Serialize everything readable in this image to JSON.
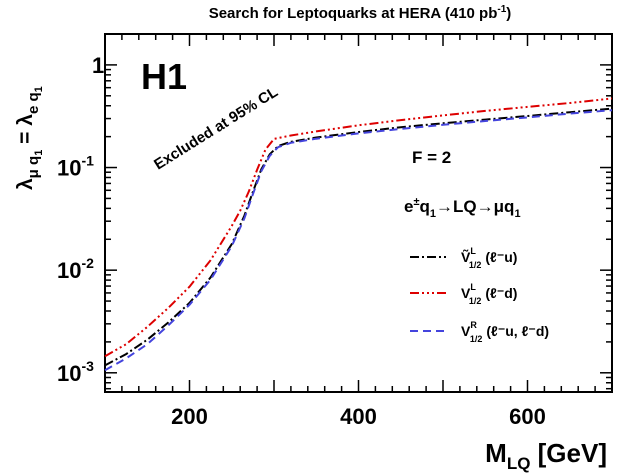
{
  "chart_data": {
    "type": "line",
    "title": "Search for Leptoquarks at HERA (410 pb⁻¹)",
    "title_main": "Search for Leptoquarks at HERA (410 pb",
    "title_sup": "-1",
    "title_end": ")",
    "experiment_label": "H1",
    "excluded_label": "Excluded at 95% CL",
    "f_label": "F = 2",
    "process": {
      "a": "e",
      "a_sup": "±",
      "b": "q",
      "b_sub": "1",
      "c": "→LQ→μq",
      "c_sub": "1"
    },
    "ylabel": {
      "a": "λ",
      "a_sub": "μ q",
      "a_sub2": "1",
      "b": " = λ",
      "b_sub": "e q",
      "b_sub2": "1"
    },
    "xlabel": {
      "a": "M",
      "a_sub": "LQ",
      "b": " [GeV]"
    },
    "x_ticks": [
      "200",
      "400",
      "600"
    ],
    "y_ticks": [
      {
        "base": "1",
        "exp": ""
      },
      {
        "base": "10",
        "exp": "-1"
      },
      {
        "base": "10",
        "exp": "-2"
      },
      {
        "base": "10",
        "exp": "-3"
      }
    ],
    "xlim": [
      100,
      700
    ],
    "ylim": [
      0.00065,
      2.0
    ],
    "y_scale": "log",
    "legend_position": "bottom-right",
    "series": [
      {
        "name": "Ṽ₁/₂ᴸ (ℓ⁻u)",
        "legend": {
          "main": "Ṽ",
          "sub": "1/2",
          "sup": "L",
          "paren": "(ℓ⁻u)"
        },
        "color": "#000000",
        "dash": "9,3,2,3",
        "x": [
          100,
          125,
          150,
          175,
          200,
          225,
          250,
          265,
          275,
          285,
          295,
          305,
          320,
          350,
          400,
          450,
          500,
          550,
          600,
          650,
          700
        ],
        "y": [
          0.00118,
          0.00152,
          0.0021,
          0.0031,
          0.0048,
          0.0085,
          0.018,
          0.034,
          0.058,
          0.096,
          0.135,
          0.162,
          0.178,
          0.196,
          0.222,
          0.247,
          0.27,
          0.293,
          0.318,
          0.346,
          0.375
        ]
      },
      {
        "name": "V₁/₂ᴸ (ℓ⁻d)",
        "legend": {
          "main": "V",
          "sub": "1/2",
          "sup": "L",
          "paren": "(ℓ⁻d)"
        },
        "color": "#dd0000",
        "dash": "9,3,2,3,2,3,2,3",
        "x": [
          100,
          125,
          150,
          175,
          200,
          225,
          250,
          260,
          270,
          280,
          290,
          300,
          320,
          350,
          400,
          450,
          500,
          550,
          600,
          650,
          700
        ],
        "y": [
          0.00145,
          0.0019,
          0.0028,
          0.0043,
          0.0069,
          0.0125,
          0.027,
          0.038,
          0.058,
          0.095,
          0.15,
          0.19,
          0.205,
          0.225,
          0.258,
          0.29,
          0.322,
          0.356,
          0.39,
          0.425,
          0.47
        ]
      },
      {
        "name": "V₁/₂ᴿ (ℓ⁻u, ℓ⁻d)",
        "legend": {
          "main": "V",
          "sub": "1/2",
          "sup": "R",
          "paren": "(ℓ⁻u, ℓ⁻d)"
        },
        "color": "#4444dd",
        "dash": "8,5",
        "x": [
          100,
          125,
          150,
          175,
          200,
          225,
          250,
          265,
          275,
          285,
          295,
          305,
          320,
          350,
          400,
          450,
          500,
          550,
          600,
          650,
          700
        ],
        "y": [
          0.00106,
          0.00138,
          0.0019,
          0.0029,
          0.0046,
          0.0081,
          0.0172,
          0.032,
          0.055,
          0.092,
          0.13,
          0.158,
          0.174,
          0.191,
          0.215,
          0.238,
          0.261,
          0.284,
          0.308,
          0.335,
          0.362
        ]
      }
    ]
  }
}
